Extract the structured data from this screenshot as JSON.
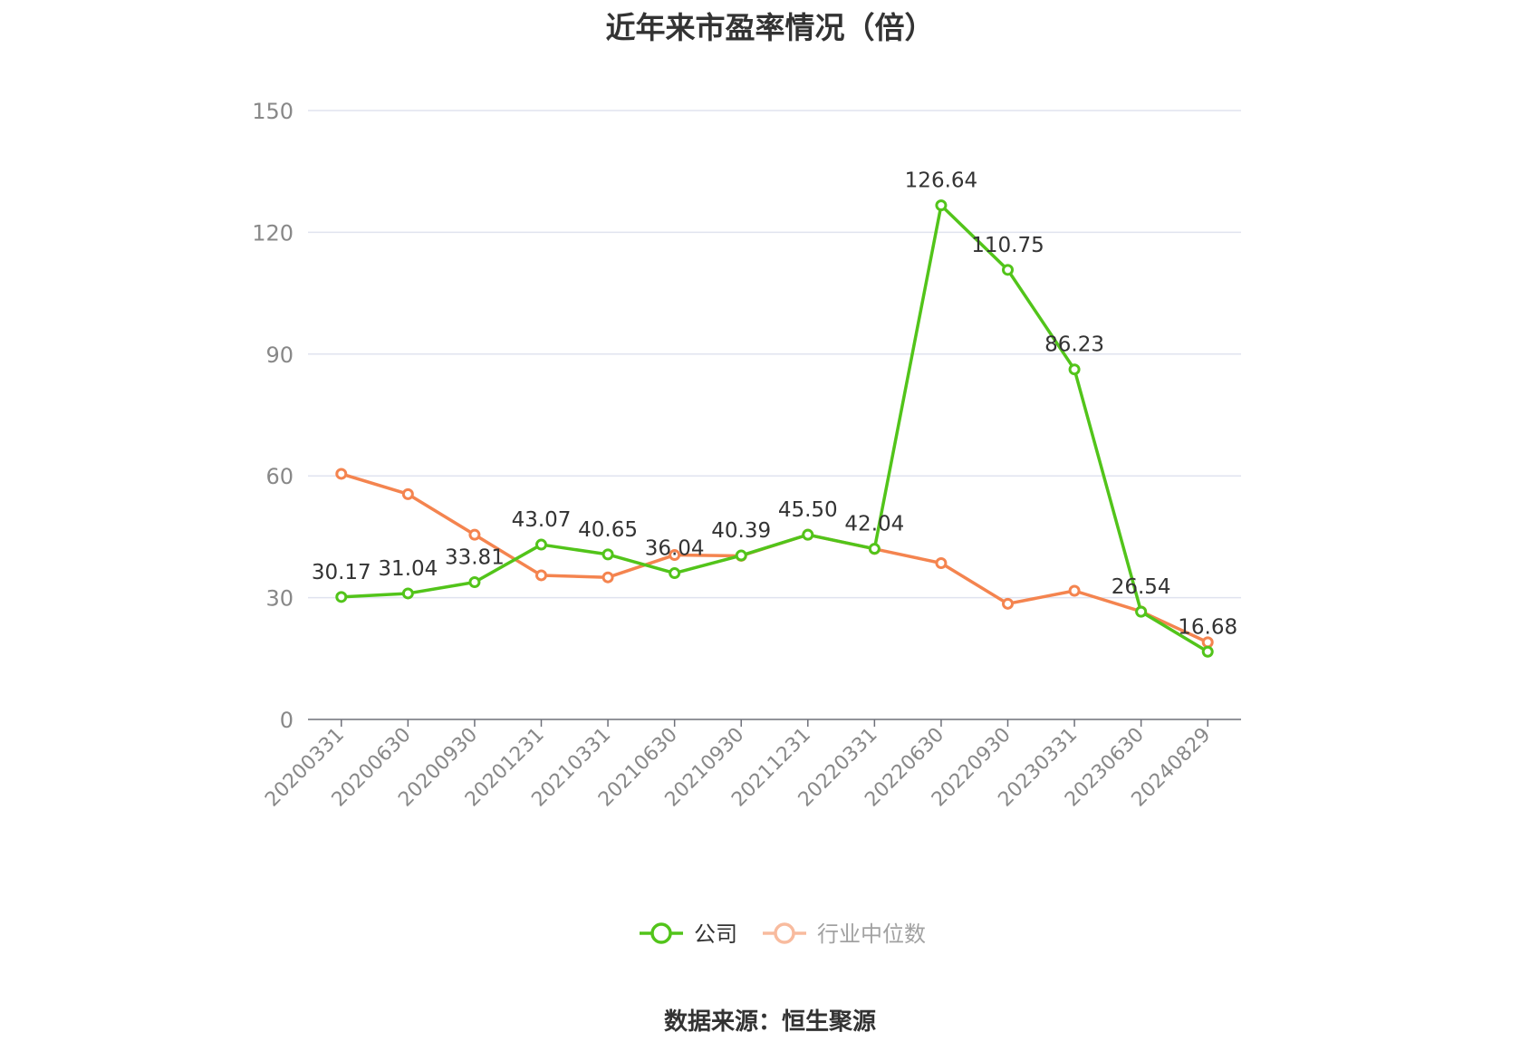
{
  "chart_data": {
    "type": "line",
    "title": "近年来市盈率情况（倍）",
    "categories": [
      "20200331",
      "20200630",
      "20200930",
      "20201231",
      "20210331",
      "20210630",
      "20210930",
      "20211231",
      "20220331",
      "20220630",
      "20220930",
      "20230331",
      "20230630",
      "20240829"
    ],
    "series": [
      {
        "name": "公司",
        "color": "#52c41a",
        "values": [
          30.17,
          31.04,
          33.81,
          43.07,
          40.65,
          36.04,
          40.39,
          45.5,
          42.04,
          126.64,
          110.75,
          86.23,
          26.54,
          16.68
        ],
        "labels": [
          "30.17",
          "31.04",
          "33.81",
          "43.07",
          "40.65",
          "36.04",
          "40.39",
          "45.50",
          "42.04",
          "126.64",
          "110.75",
          "86.23",
          "26.54",
          "16.68"
        ]
      },
      {
        "name": "行业中位数",
        "color": "#f4844f",
        "values": [
          60.5,
          55.5,
          45.5,
          35.5,
          35.0,
          40.5,
          40.3,
          45.5,
          42.0,
          38.5,
          28.5,
          31.7,
          26.6,
          19.0
        ]
      }
    ],
    "ylim": [
      0,
      150
    ],
    "yticks": [
      0,
      30,
      60,
      90,
      120,
      150
    ],
    "grid": true,
    "legend_position": "bottom"
  },
  "source_text": "数据来源：恒生聚源"
}
